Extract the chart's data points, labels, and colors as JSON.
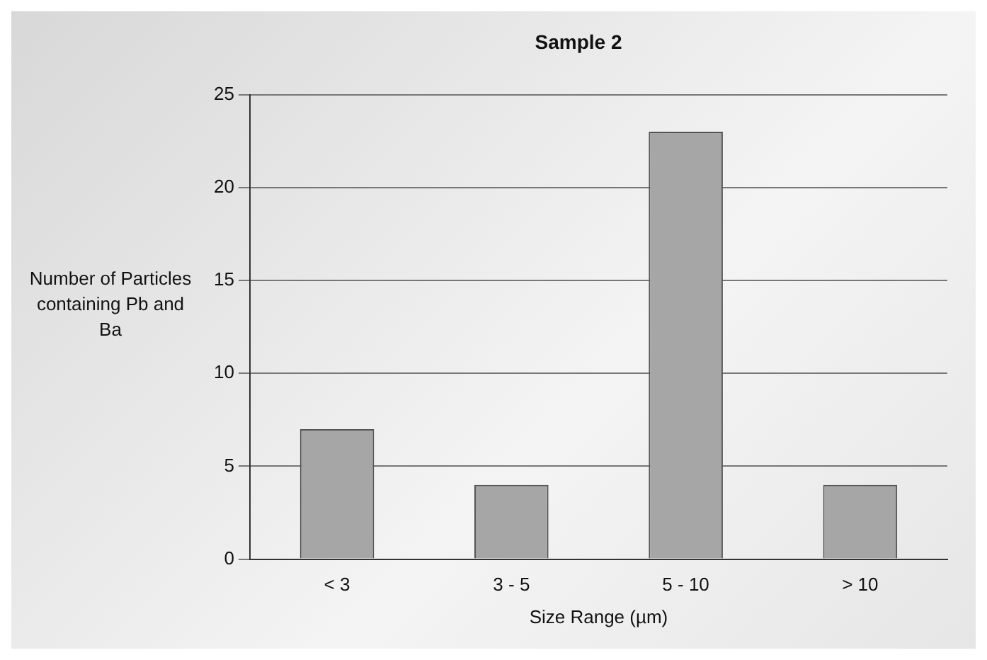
{
  "chart_data": {
    "type": "bar",
    "title": "Sample 2",
    "xlabel": "Size Range (µm)",
    "ylabel": "Number of Particles containing Pb and Ba",
    "categories": [
      "< 3",
      "3 - 5",
      "5 - 10",
      "> 10"
    ],
    "values": [
      7,
      4,
      23,
      4
    ],
    "color": "#a6a6a6",
    "ylim": [
      0,
      25
    ],
    "yticks": [
      0,
      5,
      10,
      15,
      20,
      25
    ],
    "grid": "y",
    "legend": false
  }
}
